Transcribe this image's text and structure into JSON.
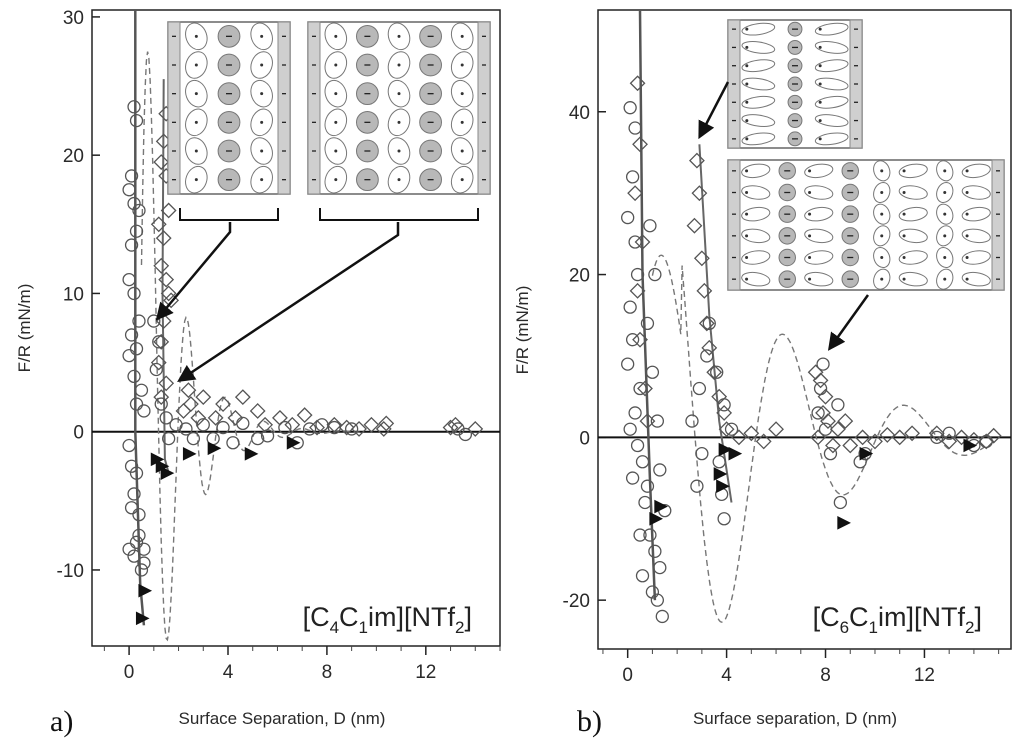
{
  "chart_data": [
    {
      "type": "scatter",
      "panel_label": "a)",
      "compound": {
        "p1": "[C",
        "s1": "4",
        "p2": "C",
        "s2": "1",
        "p3": "im][NTf",
        "s3": "2",
        "p4": "]"
      },
      "xlabel": "Surface Separation, D (nm)",
      "ylabel": "F/R (mN/m)",
      "xlim": [
        -1.5,
        15
      ],
      "ylim": [
        -15.5,
        30.5
      ],
      "xticks": [
        0,
        4,
        8,
        12
      ],
      "yticks": [
        -10,
        0,
        10,
        20,
        30
      ],
      "grid": false,
      "series": [
        {
          "marker": "circle",
          "points": [
            [
              0.2,
              23.5
            ],
            [
              0.3,
              22.5
            ],
            [
              0.1,
              18.5
            ],
            [
              0.0,
              17.5
            ],
            [
              0.2,
              16.5
            ],
            [
              0.4,
              16
            ],
            [
              0.1,
              13.5
            ],
            [
              0.3,
              14.5
            ],
            [
              0.0,
              11
            ],
            [
              0.2,
              10
            ],
            [
              0.4,
              8
            ],
            [
              0.1,
              7
            ],
            [
              0.3,
              6
            ],
            [
              0.0,
              5.5
            ],
            [
              0.2,
              4
            ],
            [
              0.5,
              3
            ],
            [
              0.3,
              2
            ],
            [
              0.6,
              1.5
            ],
            [
              0.0,
              -1
            ],
            [
              0.1,
              -2.5
            ],
            [
              0.3,
              -3
            ],
            [
              0.2,
              -4.5
            ],
            [
              0.4,
              -6
            ],
            [
              0.1,
              -5.5
            ],
            [
              0.3,
              -8
            ],
            [
              0.0,
              -8.5
            ],
            [
              0.2,
              -9
            ],
            [
              0.5,
              -10
            ],
            [
              0.4,
              -7.5
            ],
            [
              0.6,
              -9.5
            ],
            [
              0.6,
              -8.5
            ],
            [
              1.0,
              8
            ],
            [
              1.2,
              6.5
            ],
            [
              1.1,
              4.5
            ],
            [
              1.3,
              2
            ],
            [
              1.5,
              1
            ],
            [
              1.6,
              -0.5
            ],
            [
              1.9,
              0.5
            ],
            [
              2.3,
              0.2
            ],
            [
              2.6,
              -0.5
            ],
            [
              3.0,
              0.5
            ],
            [
              3.4,
              -0.5
            ],
            [
              3.8,
              0.3
            ],
            [
              4.2,
              -0.8
            ],
            [
              4.6,
              0.6
            ],
            [
              5.2,
              -0.5
            ],
            [
              5.6,
              -0.3
            ],
            [
              6.3,
              0.3
            ],
            [
              6.8,
              -0.8
            ],
            [
              7.3,
              0.2
            ],
            [
              7.8,
              0.5
            ],
            [
              8.3,
              0.3
            ],
            [
              9.0,
              0.2
            ],
            [
              13.3,
              0.2
            ],
            [
              13.6,
              -0.2
            ]
          ]
        },
        {
          "marker": "diamond",
          "points": [
            [
              1.5,
              23
            ],
            [
              1.4,
              21
            ],
            [
              1.3,
              19.5
            ],
            [
              1.5,
              18.5
            ],
            [
              1.6,
              16
            ],
            [
              1.2,
              15
            ],
            [
              1.4,
              14
            ],
            [
              1.3,
              12
            ],
            [
              1.5,
              11
            ],
            [
              1.6,
              10
            ],
            [
              1.7,
              9.5
            ],
            [
              1.4,
              8
            ],
            [
              1.3,
              6.5
            ],
            [
              1.2,
              5
            ],
            [
              1.5,
              3.5
            ],
            [
              1.3,
              2.5
            ],
            [
              2.2,
              1.5
            ],
            [
              2.4,
              3
            ],
            [
              2.5,
              2
            ],
            [
              2.8,
              1
            ],
            [
              3.0,
              2.5
            ],
            [
              3.5,
              1
            ],
            [
              3.8,
              2
            ],
            [
              4.3,
              1
            ],
            [
              4.6,
              2.5
            ],
            [
              5.2,
              1.5
            ],
            [
              5.5,
              0.5
            ],
            [
              6.1,
              1
            ],
            [
              6.6,
              0.5
            ],
            [
              7.1,
              1.2
            ],
            [
              7.6,
              0.3
            ],
            [
              8.3,
              0.5
            ],
            [
              8.8,
              0.3
            ],
            [
              9.3,
              0.2
            ],
            [
              9.8,
              0.5
            ],
            [
              10.3,
              0.2
            ],
            [
              10.4,
              0.6
            ],
            [
              13.0,
              0.3
            ],
            [
              13.2,
              0.5
            ],
            [
              14.0,
              0.2
            ]
          ]
        },
        {
          "marker": "triangle-right",
          "points": [
            [
              0.6,
              -11.5
            ],
            [
              0.5,
              -13.5
            ],
            [
              1.1,
              -2
            ],
            [
              1.3,
              -2.5
            ],
            [
              1.5,
              -3
            ],
            [
              2.4,
              -1.6
            ],
            [
              3.4,
              -1.2
            ],
            [
              4.9,
              -1.6
            ],
            [
              6.6,
              -0.8
            ]
          ]
        }
      ],
      "insets": [
        {
          "columns": [
            "ion",
            "ion",
            "ion"
          ],
          "rows": 6
        },
        {
          "columns": [
            "ion",
            "ion",
            "ion",
            "ion",
            "ion"
          ],
          "rows": 6
        }
      ]
    },
    {
      "type": "scatter",
      "panel_label": "b)",
      "compound": {
        "p1": "[C",
        "s1": "6",
        "p2": "C",
        "s2": "1",
        "p3": "im][NTf",
        "s3": "2",
        "p4": "]"
      },
      "xlabel": "Surface separation, D (nm)",
      "ylabel": "F/R (mN/m)",
      "xlim": [
        -1.2,
        15.5
      ],
      "ylim": [
        -26,
        52.5
      ],
      "xticks": [
        0,
        4,
        8,
        12
      ],
      "yticks": [
        -20,
        0,
        20,
        40
      ],
      "grid": false,
      "series": [
        {
          "marker": "circle",
          "points": [
            [
              0.1,
              40.5
            ],
            [
              0.3,
              38
            ],
            [
              0.2,
              32
            ],
            [
              0.0,
              27
            ],
            [
              0.3,
              24
            ],
            [
              0.4,
              20
            ],
            [
              0.1,
              16
            ],
            [
              0.2,
              12
            ],
            [
              0.0,
              9
            ],
            [
              0.5,
              6
            ],
            [
              0.3,
              3
            ],
            [
              0.1,
              1
            ],
            [
              0.4,
              -1
            ],
            [
              0.6,
              -3
            ],
            [
              0.2,
              -5
            ],
            [
              0.7,
              -8
            ],
            [
              0.9,
              -12
            ],
            [
              1.1,
              -14
            ],
            [
              1.3,
              -16
            ],
            [
              0.6,
              -17
            ],
            [
              1.0,
              -19
            ],
            [
              1.4,
              -22
            ],
            [
              1.2,
              -20
            ],
            [
              0.5,
              -12
            ],
            [
              0.8,
              -6
            ],
            [
              1.2,
              2
            ],
            [
              1.0,
              8
            ],
            [
              0.8,
              14
            ],
            [
              1.1,
              20
            ],
            [
              0.9,
              26
            ],
            [
              1.3,
              -4
            ],
            [
              1.5,
              -9
            ],
            [
              2.8,
              -6
            ],
            [
              3.0,
              -2
            ],
            [
              2.6,
              2
            ],
            [
              2.9,
              6
            ],
            [
              3.2,
              10
            ],
            [
              3.3,
              14
            ],
            [
              3.6,
              8
            ],
            [
              3.9,
              4
            ],
            [
              4.2,
              1
            ],
            [
              3.7,
              -3
            ],
            [
              3.8,
              -7
            ],
            [
              3.9,
              -10
            ],
            [
              7.7,
              3
            ],
            [
              7.8,
              6
            ],
            [
              7.9,
              9
            ],
            [
              8.0,
              1
            ],
            [
              8.2,
              -2
            ],
            [
              8.5,
              4
            ],
            [
              8.6,
              -8
            ],
            [
              9.4,
              -3
            ],
            [
              9.6,
              -2
            ],
            [
              12.5,
              0
            ],
            [
              13.0,
              0.5
            ],
            [
              14.0,
              -1
            ],
            [
              14.5,
              -0.5
            ]
          ]
        },
        {
          "marker": "diamond",
          "points": [
            [
              0.4,
              43.5
            ],
            [
              0.5,
              36
            ],
            [
              0.3,
              30
            ],
            [
              0.6,
              24
            ],
            [
              0.4,
              18
            ],
            [
              0.5,
              12
            ],
            [
              0.7,
              6
            ],
            [
              0.8,
              2
            ],
            [
              2.8,
              34
            ],
            [
              2.9,
              30
            ],
            [
              2.7,
              26
            ],
            [
              3.0,
              22
            ],
            [
              3.1,
              18
            ],
            [
              3.2,
              14
            ],
            [
              3.3,
              11
            ],
            [
              3.5,
              8
            ],
            [
              3.7,
              5
            ],
            [
              3.9,
              3
            ],
            [
              4.0,
              1
            ],
            [
              4.5,
              0
            ],
            [
              5.0,
              0.5
            ],
            [
              5.5,
              -0.5
            ],
            [
              6.0,
              1
            ],
            [
              7.6,
              8
            ],
            [
              7.8,
              7
            ],
            [
              8.0,
              5
            ],
            [
              7.9,
              3
            ],
            [
              8.1,
              2
            ],
            [
              7.7,
              0
            ],
            [
              8.3,
              -1
            ],
            [
              8.5,
              1
            ],
            [
              8.8,
              2
            ],
            [
              9.0,
              -1
            ],
            [
              9.5,
              0
            ],
            [
              10.0,
              -0.5
            ],
            [
              10.5,
              0.3
            ],
            [
              11.0,
              0
            ],
            [
              11.5,
              0.5
            ],
            [
              12.5,
              0.5
            ],
            [
              13.0,
              -0.5
            ],
            [
              13.5,
              0
            ],
            [
              14.0,
              -0.3
            ],
            [
              14.5,
              -0.5
            ],
            [
              14.8,
              0.2
            ]
          ]
        },
        {
          "marker": "triangle-right",
          "points": [
            [
              1.1,
              -10
            ],
            [
              1.3,
              -8.5
            ],
            [
              3.7,
              -4.5
            ],
            [
              3.8,
              -6
            ],
            [
              3.9,
              -1.5
            ],
            [
              4.3,
              -2
            ],
            [
              8.7,
              -10.5
            ],
            [
              9.6,
              -2
            ],
            [
              13.8,
              -1
            ]
          ]
        }
      ],
      "insets": [
        {
          "columns": [
            "chain",
            "ion",
            "chain"
          ],
          "rows": 7
        },
        {
          "columns": [
            "chain",
            "ion",
            "chain",
            "ion",
            "ion",
            "chain",
            "ion",
            "chain"
          ],
          "rows": 6
        }
      ]
    }
  ]
}
